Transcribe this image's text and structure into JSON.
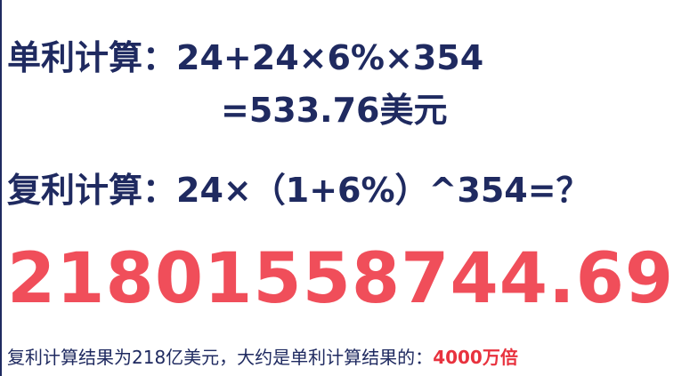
{
  "simple_interest": {
    "label": "单利计算",
    "colon": "：",
    "formula": "24+24×6%×354",
    "result": "=533.76美元"
  },
  "compound_interest": {
    "label": "复利计算",
    "colon": "：",
    "formula": "24×（1+6%）^354=？"
  },
  "big_result": "21801558744.69",
  "conclusion": {
    "text": "复利计算结果为218亿美元，大约是单利计算结果的：",
    "highlight": "4000万倍"
  },
  "colors": {
    "text": "#1f2a60",
    "accent": "#f04e5a",
    "highlight": "#e8323e"
  }
}
